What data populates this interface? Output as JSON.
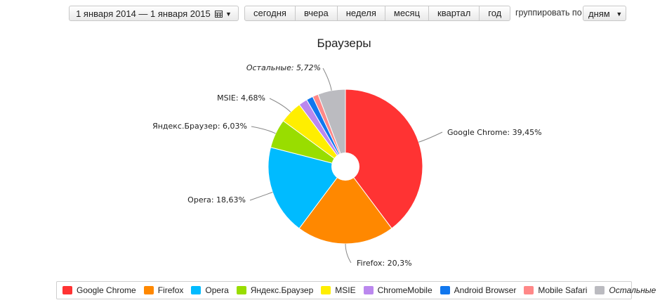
{
  "toolbar": {
    "date_range": "1 января 2014 — 1 января 2015",
    "period_buttons": [
      "сегодня",
      "вчера",
      "неделя",
      "месяц",
      "квартал",
      "год"
    ],
    "group_by_label": "группировать по",
    "group_by_value": "дням",
    "calendar_icon": "calendar-icon",
    "dropdown_icon": "caret-down-icon"
  },
  "chart_data": {
    "type": "pie",
    "title": "Браузеры",
    "donut": true,
    "legend_position": "bottom",
    "slices": [
      {
        "label": "Google Chrome",
        "value": 39.45,
        "label_text": "Google Chrome: 39,45%",
        "color": "#ff3333"
      },
      {
        "label": "Firefox",
        "value": 20.3,
        "label_text": "Firefox: 20,3%",
        "color": "#ff8800"
      },
      {
        "label": "Opera",
        "value": 18.63,
        "label_text": "Opera: 18,63%",
        "color": "#00bbff"
      },
      {
        "label": "Яндекс.Браузер",
        "value": 6.03,
        "label_text": "Яндекс.Браузер: 6,03%",
        "color": "#99dd00"
      },
      {
        "label": "MSIE",
        "value": 4.68,
        "label_text": "MSIE: 4,68%",
        "color": "#ffee00"
      },
      {
        "label": "ChromeMobile",
        "value": 1.8,
        "label_text": "",
        "color": "#bb88ee"
      },
      {
        "label": "Android Browser",
        "value": 1.4,
        "label_text": "",
        "color": "#1177ee"
      },
      {
        "label": "Mobile Safari",
        "value": 1.2,
        "label_text": "",
        "color": "#ff8888"
      },
      {
        "label": "Остальные",
        "value": 5.72,
        "label_text": "Остальные: 5,72%",
        "color": "#bbbbc0",
        "italic": true
      }
    ]
  }
}
